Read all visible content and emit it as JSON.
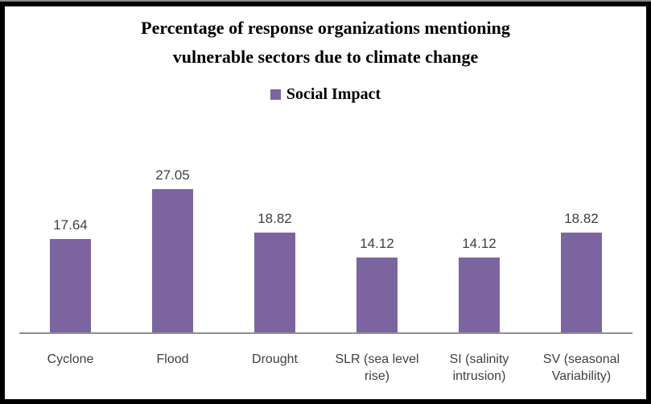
{
  "header": {
    "title_line1": "Percentage of response organizations mentioning",
    "title_line2": "vulnerable sectors due to climate change"
  },
  "legend": {
    "label": "Social Impact",
    "marker_color": "#7c64a1"
  },
  "chart_data": {
    "type": "bar",
    "title": "Percentage of response organizations mentioning vulnerable sectors due to climate change",
    "categories": [
      "Cyclone",
      "Flood",
      "Drought",
      "SLR (sea level rise)",
      "SI (salinity intrusion)",
      "SV (seasonal Variability)"
    ],
    "category_display": [
      "Cyclone",
      "Flood",
      "Drought",
      "SLR (sea level\nrise)",
      "SI (salinity\nintrusion)",
      "SV (seasonal\nVariability)"
    ],
    "series": [
      {
        "name": "Social Impact",
        "values": [
          17.64,
          27.05,
          18.82,
          14.12,
          14.12,
          18.82
        ]
      }
    ],
    "data_labels": [
      "17.64",
      "27.05",
      "18.82",
      "14.12",
      "14.12",
      "18.82"
    ],
    "xlabel": "",
    "ylabel": "",
    "ylim": [
      0,
      30
    ],
    "grid": false,
    "legend_position": "top",
    "bar_color": "#7c64a1",
    "axis_color": "#8f8f8f",
    "label_color": "#3f3f3f"
  }
}
